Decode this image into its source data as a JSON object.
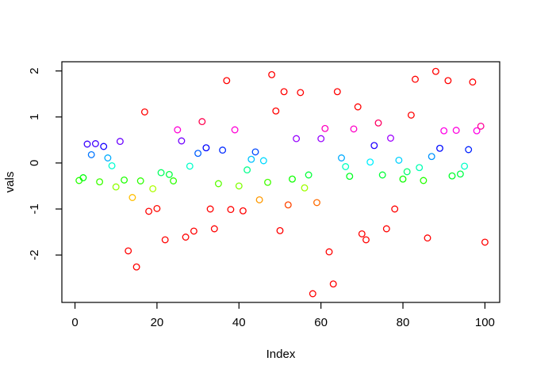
{
  "figure": {
    "background_color": "#ffffff",
    "axis_color": "#000000",
    "label_color": "#000000"
  },
  "chart_data": {
    "type": "scatter",
    "title": "",
    "xlabel": "Index",
    "ylabel": "vals",
    "x_ticks": [
      0,
      20,
      40,
      60,
      80,
      100
    ],
    "y_ticks": [
      -2,
      -1,
      0,
      1,
      2
    ],
    "xlim": [
      -3.2,
      103.6
    ],
    "ylim": [
      -3.03,
      2.2
    ],
    "grid": false,
    "legend": null,
    "marker": "open-circle",
    "marker_radius_px": 3.8,
    "color_rule": {
      "type": "hsl-by-value",
      "formula": "hue_deg = clamp(180 + 180 * value, 0, 360)",
      "saturation_pct": 100,
      "lightness_pct": 50,
      "examples": {
        "value_2.0": "#ff0000",
        "value_0.7": "#ff00e6",
        "value_0.4": "#0026ff",
        "value_0.0": "#00f2ff",
        "value_-0.3": "#00ff1a",
        "value_-0.55": "#a6ff00",
        "value_-0.8": "#ff9900",
        "value_-1.5": "#ff0000"
      }
    },
    "x": [
      1,
      2,
      3,
      4,
      5,
      6,
      7,
      8,
      9,
      10,
      11,
      12,
      13,
      14,
      15,
      16,
      17,
      18,
      19,
      20,
      21,
      22,
      23,
      24,
      25,
      26,
      27,
      28,
      29,
      30,
      31,
      32,
      33,
      34,
      35,
      36,
      37,
      38,
      39,
      40,
      41,
      42,
      43,
      44,
      45,
      46,
      47,
      48,
      49,
      50,
      51,
      52,
      53,
      54,
      55,
      56,
      57,
      58,
      59,
      60,
      61,
      62,
      63,
      64,
      65,
      66,
      67,
      68,
      69,
      70,
      71,
      72,
      73,
      74,
      75,
      76,
      77,
      78,
      79,
      80,
      81,
      82,
      83,
      84,
      85,
      86,
      87,
      88,
      89,
      90,
      91,
      92,
      93,
      94,
      95,
      96,
      97,
      98,
      99,
      100
    ],
    "values": [
      -0.38,
      -0.32,
      0.41,
      0.18,
      0.42,
      -0.41,
      0.36,
      0.11,
      -0.06,
      -0.52,
      0.47,
      -0.37,
      -1.91,
      -0.75,
      -2.26,
      -0.39,
      1.11,
      -1.05,
      -0.56,
      -0.99,
      -0.21,
      -1.67,
      -0.25,
      -0.39,
      0.72,
      0.48,
      -1.61,
      -0.07,
      -1.48,
      0.21,
      0.9,
      0.33,
      -1.0,
      -1.43,
      -0.45,
      0.28,
      1.79,
      -1.01,
      0.72,
      -0.5,
      -1.04,
      -0.15,
      0.08,
      0.24,
      -0.8,
      0.05,
      -0.42,
      1.92,
      1.13,
      -1.47,
      1.55,
      -0.91,
      -0.35,
      0.53,
      1.53,
      -0.54,
      -0.26,
      -2.84,
      -0.86,
      0.53,
      0.75,
      -1.93,
      -2.63,
      1.55,
      0.11,
      -0.08,
      -0.29,
      0.74,
      1.22,
      -1.54,
      -1.67,
      0.02,
      0.38,
      0.87,
      -0.26,
      -1.43,
      0.54,
      -1.0,
      0.06,
      -0.35,
      -0.19,
      1.04,
      1.82,
      -0.1,
      -0.38,
      -1.63,
      0.14,
      1.99,
      0.32,
      0.7,
      1.79,
      -0.28,
      0.71,
      -0.24,
      -0.07,
      0.29,
      1.76,
      0.7,
      0.8,
      -1.72
    ]
  }
}
